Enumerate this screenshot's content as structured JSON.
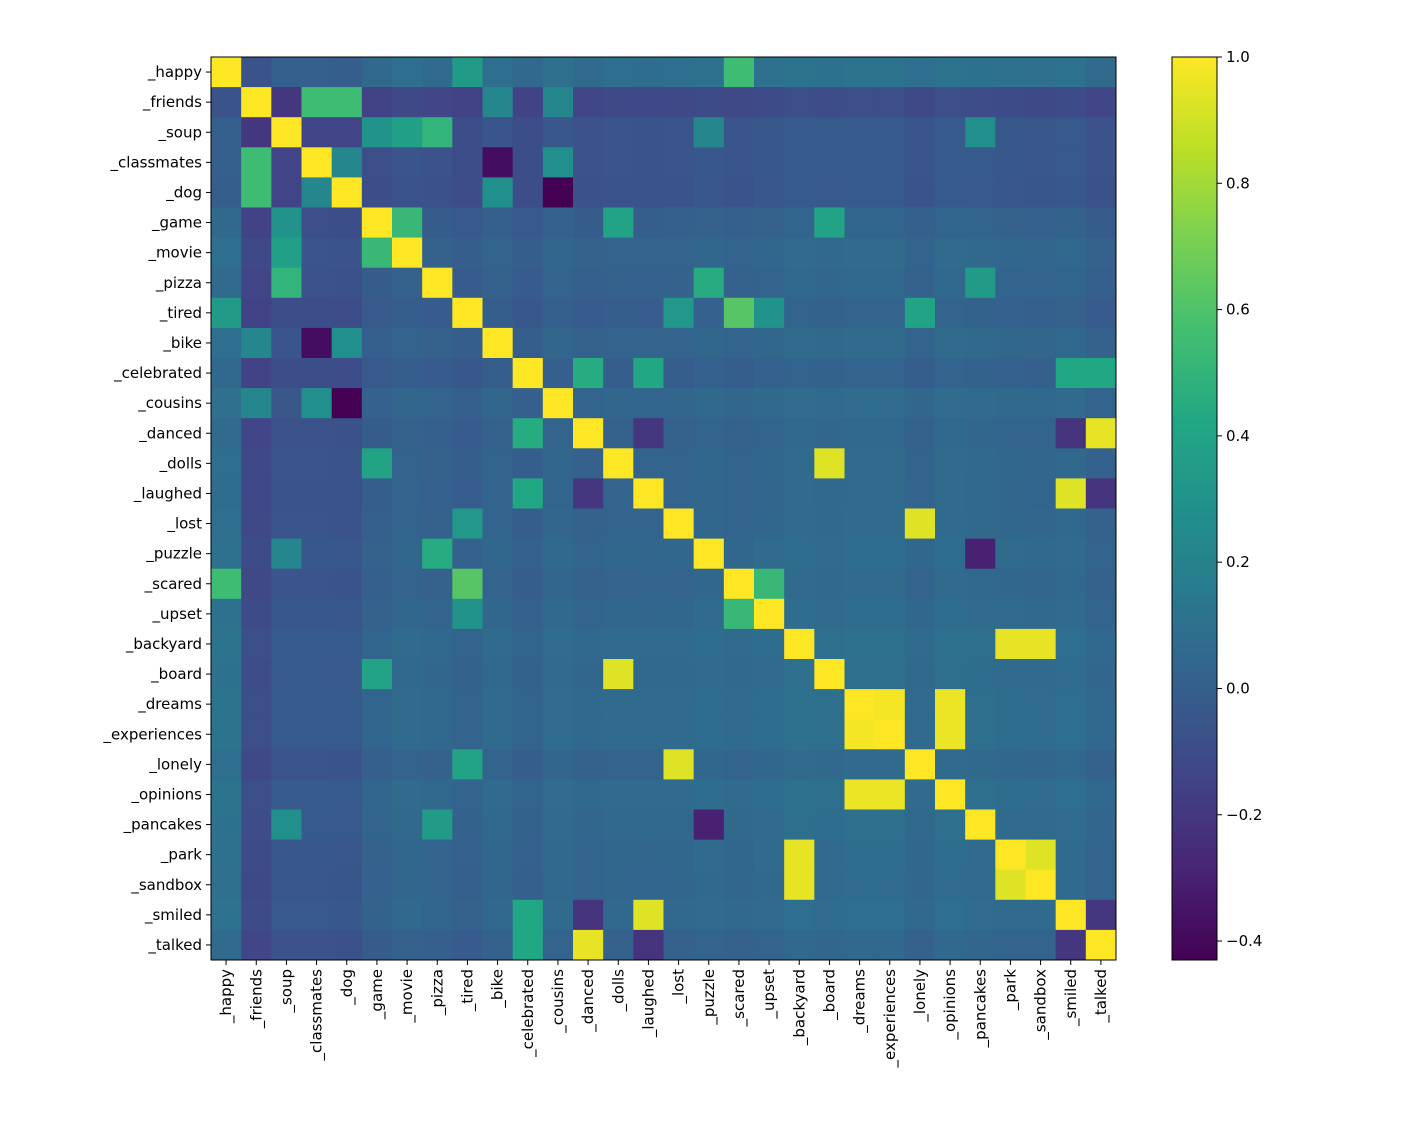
{
  "chart_data": {
    "type": "heatmap",
    "title": "",
    "xlabel": "",
    "ylabel": "",
    "labels": [
      "_happy",
      "_friends",
      "_soup",
      "_classmates",
      "_dog",
      "_game",
      "_movie",
      "_pizza",
      "_tired",
      "_bike",
      "_celebrated",
      "_cousins",
      "_danced",
      "_dolls",
      "_laughed",
      "_lost",
      "_puzzle",
      "_scared",
      "_upset",
      "_backyard",
      "_board",
      "_dreams",
      "_experiences",
      "_lonely",
      "_opinions",
      "_pancakes",
      "_park",
      "_sandbox",
      "_smiled",
      "_talked"
    ],
    "colorbar": {
      "min": -0.43,
      "max": 1.0,
      "ticks": [
        -0.4,
        -0.2,
        0.0,
        0.2,
        0.4,
        0.6,
        0.8,
        1.0
      ],
      "tick_labels": [
        "−0.4",
        "−0.2",
        "0.0",
        "0.2",
        "0.4",
        "0.6",
        "0.8",
        "1.0"
      ],
      "colormap": "viridis"
    },
    "base_values": [
      0.14,
      -0.27,
      -0.14,
      -0.14,
      -0.15,
      -0.03,
      0.03,
      0.0,
      -0.04,
      0.03,
      -0.04,
      0.05,
      0.0,
      0.03,
      0.02,
      0.03,
      0.06,
      0.03,
      0.06,
      0.1,
      0.08,
      0.1,
      0.1,
      0.03,
      0.1,
      0.08,
      0.06,
      0.05,
      0.07,
      0.0
    ],
    "pairs": [
      [
        "_happy",
        "_tired",
        0.35
      ],
      [
        "_happy",
        "_scared",
        0.55
      ],
      [
        "_friends",
        "_classmates",
        0.55
      ],
      [
        "_friends",
        "_dog",
        0.55
      ],
      [
        "_friends",
        "_bike",
        0.22
      ],
      [
        "_friends",
        "_cousins",
        0.22
      ],
      [
        "_soup",
        "_game",
        0.3
      ],
      [
        "_soup",
        "_movie",
        0.38
      ],
      [
        "_soup",
        "_pizza",
        0.5
      ],
      [
        "_soup",
        "_pancakes",
        0.28
      ],
      [
        "_soup",
        "_puzzle",
        0.22
      ],
      [
        "_classmates",
        "_dog",
        0.22
      ],
      [
        "_classmates",
        "_bike",
        -0.38
      ],
      [
        "_classmates",
        "_cousins",
        0.28
      ],
      [
        "_dog",
        "_bike",
        0.28
      ],
      [
        "_dog",
        "_cousins",
        -0.43
      ],
      [
        "_game",
        "_movie",
        0.52
      ],
      [
        "_game",
        "_dolls",
        0.4
      ],
      [
        "_game",
        "_board",
        0.4
      ],
      [
        "_pizza",
        "_puzzle",
        0.45
      ],
      [
        "_pizza",
        "_pancakes",
        0.35
      ],
      [
        "_tired",
        "_lost",
        0.33
      ],
      [
        "_tired",
        "_scared",
        0.62
      ],
      [
        "_tired",
        "_upset",
        0.3
      ],
      [
        "_tired",
        "_lonely",
        0.4
      ],
      [
        "_celebrated",
        "_danced",
        0.45
      ],
      [
        "_celebrated",
        "_laughed",
        0.42
      ],
      [
        "_celebrated",
        "_smiled",
        0.42
      ],
      [
        "_celebrated",
        "_talked",
        0.42
      ],
      [
        "_danced",
        "_talked",
        0.95
      ],
      [
        "_danced",
        "_laughed",
        -0.2
      ],
      [
        "_danced",
        "_smiled",
        -0.22
      ],
      [
        "_dolls",
        "_board",
        0.93
      ],
      [
        "_laughed",
        "_smiled",
        0.93
      ],
      [
        "_laughed",
        "_talked",
        -0.22
      ],
      [
        "_lost",
        "_lonely",
        0.93
      ],
      [
        "_puzzle",
        "_pancakes",
        -0.3
      ],
      [
        "_scared",
        "_upset",
        0.52
      ],
      [
        "_backyard",
        "_park",
        0.95
      ],
      [
        "_backyard",
        "_sandbox",
        0.95
      ],
      [
        "_dreams",
        "_experiences",
        0.98
      ],
      [
        "_dreams",
        "_opinions",
        0.96
      ],
      [
        "_experiences",
        "_opinions",
        0.96
      ],
      [
        "_park",
        "_sandbox",
        0.93
      ],
      [
        "_smiled",
        "_talked",
        -0.2
      ]
    ]
  }
}
